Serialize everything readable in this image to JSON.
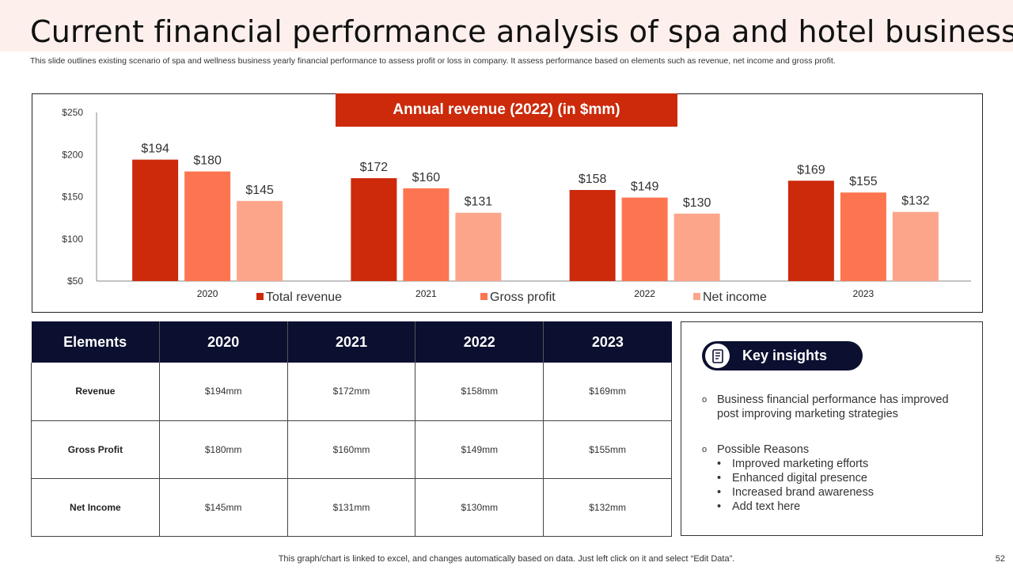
{
  "title": "Current financial performance analysis of spa and hotel business",
  "subtitle": "This slide outlines existing scenario of spa and wellness business yearly financial performance to assess profit or loss in company. It assess performance based on elements such as revenue, net income and gross profit.",
  "chart_data": {
    "type": "bar",
    "title": "Annual revenue (2022) (in $mm)",
    "categories": [
      "2020",
      "2021",
      "2022",
      "2023"
    ],
    "series": [
      {
        "name": "Total revenue",
        "color": "#cc2a0b",
        "values": [
          194,
          172,
          158,
          169
        ]
      },
      {
        "name": "Gross profit",
        "color": "#fd7550",
        "values": [
          180,
          160,
          149,
          155
        ]
      },
      {
        "name": "Net income",
        "color": "#fda58b",
        "values": [
          145,
          131,
          130,
          132
        ]
      }
    ],
    "ylim": [
      50,
      250
    ],
    "yticks": [
      50,
      100,
      150,
      200,
      250
    ],
    "ytick_labels": [
      "$50",
      "$100",
      "$150",
      "$200",
      "$250"
    ],
    "value_prefix": "$",
    "legend": "bottom",
    "grid": false
  },
  "table": {
    "headers": [
      "Elements",
      "2020",
      "2021",
      "2022",
      "2023"
    ],
    "rows": [
      [
        "Revenue",
        "$194mm",
        "$172mm",
        "$158mm",
        "$169mm"
      ],
      [
        "Gross Profit",
        "$180mm",
        "$160mm",
        "$149mm",
        "$155mm"
      ],
      [
        "Net Income",
        "$145mm",
        "$131mm",
        "$130mm",
        "$132mm"
      ]
    ]
  },
  "insights": {
    "heading": "Key insights",
    "icon": "document-list-icon",
    "point1_marker": "o",
    "point1": "Business financial performance has improved post improving marketing strategies",
    "point2_marker": "o",
    "point2": "Possible Reasons",
    "bullet_marker": "•",
    "reasons": [
      "Improved marketing efforts",
      "Enhanced digital presence",
      "Increased brand awareness",
      "Add text here"
    ]
  },
  "footer": "This graph/chart is linked to excel,  and changes automatically based on data. Just left click on it and select “Edit Data”.",
  "page_number": "52"
}
